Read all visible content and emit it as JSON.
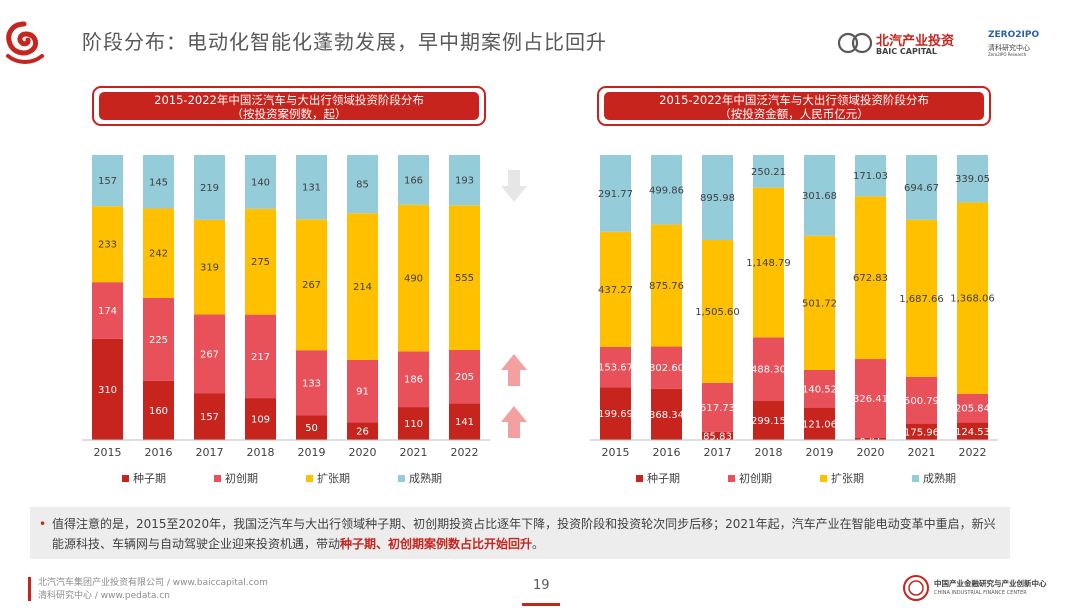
{
  "page": {
    "title": "阶段分布：电动化智能化蓬勃发展，早中期案例占比回升",
    "baic_logo_text": "北汽产业投资",
    "baic_logo_sub": "BAIC CAPITAL",
    "zero_logo_text": "ZERO2IPO",
    "zero_logo_sub1": "清科研究中心",
    "zero_logo_sub2": "Zero2IPO Research",
    "cifc_logo_text": "中国产业金融研究与产业创新中心",
    "cifc_logo_sub": "CHINA INDUSTRIAL FINANCE CENTER",
    "page_number": "19",
    "footer_line1": "北汽汽车集团产业投资有限公司 / www.baiccapital.com",
    "footer_line2": "清科研究中心 / www.pedata.cn",
    "note_bullet": "•",
    "note_text": "值得注意的是，2015至2020年，我国泛汽车与大出行领域种子期、初创期投资占比逐年下降，投资阶段和投资轮次同步后移；2021年起，汽车产业在智能电动变革中重启，新兴能源科技、车辆网与自动驾驶企业迎来投资机遇，带动",
    "note_highlight": "种子期、初创期案例数占比开始回升",
    "note_end": "。",
    "colors": {
      "seed": "#c8241e",
      "startup": "#e8515a",
      "expansion": "#ffc000",
      "mature": "#94ccd9",
      "accent": "#c8241e"
    }
  },
  "chart_data": [
    {
      "type": "bar",
      "stacked": true,
      "normalized": true,
      "title": "2015-2022年中国泛汽车与大出行领域投资阶段分布",
      "subtitle": "（按投资案例数，起）",
      "categories": [
        "2015",
        "2016",
        "2017",
        "2018",
        "2019",
        "2020",
        "2021",
        "2022"
      ],
      "series": [
        {
          "name": "种子期",
          "values": [
            310,
            160,
            157,
            109,
            50,
            26,
            110,
            141
          ],
          "labels": [
            "310",
            "160",
            "157",
            "109",
            "50",
            "26",
            "110",
            "141"
          ]
        },
        {
          "name": "初创期",
          "values": [
            174,
            225,
            267,
            217,
            133,
            91,
            186,
            205
          ],
          "labels": [
            "174",
            "225",
            "267",
            "217",
            "133",
            "91",
            "186",
            "205"
          ]
        },
        {
          "name": "扩张期",
          "values": [
            233,
            242,
            319,
            275,
            267,
            214,
            490,
            555
          ],
          "labels": [
            "233",
            "242",
            "319",
            "275",
            "267",
            "214",
            "490",
            "555"
          ]
        },
        {
          "name": "成熟期",
          "values": [
            157,
            145,
            219,
            140,
            131,
            85,
            166,
            193
          ],
          "labels": [
            "157",
            "145",
            "219",
            "140",
            "131",
            "85",
            "166",
            "193"
          ]
        }
      ],
      "legend": "bottom"
    },
    {
      "type": "bar",
      "stacked": true,
      "normalized": true,
      "title": "2015-2022年中国泛汽车与大出行领域投资阶段分布",
      "subtitle": "（按投资金额，人民币亿元）",
      "categories": [
        "2015",
        "2016",
        "2017",
        "2018",
        "2019",
        "2020",
        "2021",
        "2022"
      ],
      "series": [
        {
          "name": "种子期",
          "values": [
            199.69,
            368.34,
            85.83,
            299.15,
            121.06,
            8.41,
            175.96,
            124.53
          ],
          "labels": [
            "199.69",
            "368.34",
            "85.83",
            "299.15",
            "121.06",
            "8.41",
            "175.96",
            "124.53"
          ]
        },
        {
          "name": "初创期",
          "values": [
            153.67,
            302.6,
            517.73,
            488.3,
            140.52,
            326.41,
            500.79,
            205.84
          ],
          "labels": [
            "153.67",
            "302.60",
            "517.73",
            "488.30",
            "140.52",
            "326.41",
            "500.79",
            "205.84"
          ]
        },
        {
          "name": "扩张期",
          "values": [
            437.27,
            875.76,
            1505.6,
            1148.79,
            501.72,
            672.83,
            1687.66,
            1368.06
          ],
          "labels": [
            "437.27",
            "875.76",
            "1,505.60",
            "1,148.79",
            "501.72",
            "672.83",
            "1,687.66",
            "1,368.06"
          ]
        },
        {
          "name": "成熟期",
          "values": [
            291.77,
            499.86,
            895.98,
            250.21,
            301.68,
            171.03,
            694.67,
            339.05
          ],
          "labels": [
            "291.77",
            "499.86",
            "895.98",
            "250.21",
            "301.68",
            "171.03",
            "694.67",
            "339.05"
          ]
        }
      ],
      "legend": "bottom"
    }
  ]
}
